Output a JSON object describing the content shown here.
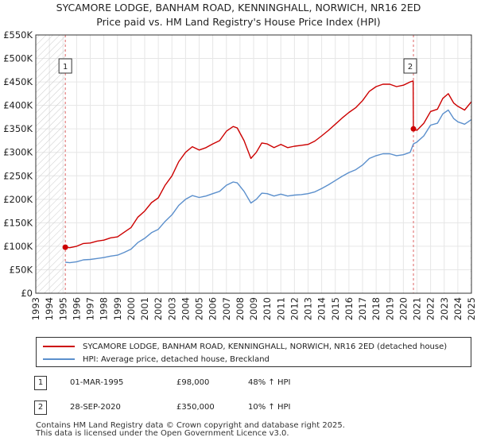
{
  "chart_data": {
    "type": "line",
    "title": "SYCAMORE LODGE, BANHAM ROAD, KENNINGHALL, NORWICH, NR16 2ED",
    "subtitle": "Price paid vs. HM Land Registry's House Price Index (HPI)",
    "ylim": [
      0,
      550000
    ],
    "xlim": [
      1993,
      2025
    ],
    "y_ticks": [
      0,
      50000,
      100000,
      150000,
      200000,
      250000,
      300000,
      350000,
      400000,
      450000,
      500000,
      550000
    ],
    "y_tick_labels": [
      "£0",
      "£50K",
      "£100K",
      "£150K",
      "£200K",
      "£250K",
      "£300K",
      "£350K",
      "£400K",
      "£450K",
      "£500K",
      "£550K"
    ],
    "x_ticks": [
      "1993",
      "1994",
      "1995",
      "1996",
      "1997",
      "1998",
      "1999",
      "2000",
      "2001",
      "2002",
      "2003",
      "2004",
      "2005",
      "2006",
      "2007",
      "2008",
      "2009",
      "2010",
      "2011",
      "2012",
      "2013",
      "2014",
      "2015",
      "2016",
      "2017",
      "2018",
      "2019",
      "2020",
      "2021",
      "2022",
      "2023",
      "2024",
      "2025"
    ],
    "series": [
      {
        "name": "SYCAMORE LODGE, BANHAM ROAD, KENNINGHALL, NORWICH, NR16 2ED (detached house)",
        "color": "#cc0000",
        "x": [
          1995.17,
          1995.5,
          1996.0,
          1996.5,
          1997.0,
          1997.5,
          1998.0,
          1998.5,
          1999.0,
          1999.5,
          2000.0,
          2000.5,
          2001.0,
          2001.5,
          2002.0,
          2002.5,
          2003.0,
          2003.5,
          2004.0,
          2004.5,
          2005.0,
          2005.5,
          2006.0,
          2006.5,
          2007.0,
          2007.5,
          2007.8,
          2008.3,
          2008.8,
          2009.2,
          2009.6,
          2010.0,
          2010.5,
          2011.0,
          2011.5,
          2012.0,
          2012.5,
          2013.0,
          2013.5,
          2014.0,
          2014.5,
          2015.0,
          2015.5,
          2016.0,
          2016.5,
          2017.0,
          2017.5,
          2018.0,
          2018.5,
          2019.0,
          2019.5,
          2020.0,
          2020.5,
          2020.72,
          2020.74,
          2021.0,
          2021.5,
          2022.0,
          2022.5,
          2022.9,
          2023.3,
          2023.7,
          2024.0,
          2024.5,
          2025.0
        ],
        "values": [
          98000,
          97000,
          100000,
          106000,
          107000,
          111000,
          113000,
          118000,
          120000,
          130000,
          140000,
          162000,
          175000,
          193000,
          203000,
          230000,
          250000,
          280000,
          300000,
          312000,
          305000,
          310000,
          318000,
          325000,
          345000,
          355000,
          352000,
          325000,
          287000,
          300000,
          320000,
          318000,
          310000,
          317000,
          310000,
          313000,
          315000,
          317000,
          324000,
          335000,
          347000,
          360000,
          373000,
          385000,
          395000,
          410000,
          430000,
          440000,
          445000,
          445000,
          440000,
          443000,
          450000,
          452000,
          350000,
          347000,
          362000,
          387000,
          392000,
          415000,
          425000,
          405000,
          398000,
          390000,
          408000
        ]
      },
      {
        "name": "HPI: Average price, detached house, Breckland",
        "color": "#5b8fcc",
        "x": [
          1995.17,
          1995.5,
          1996.0,
          1996.5,
          1997.0,
          1997.5,
          1998.0,
          1998.5,
          1999.0,
          1999.5,
          2000.0,
          2000.5,
          2001.0,
          2001.5,
          2002.0,
          2002.5,
          2003.0,
          2003.5,
          2004.0,
          2004.5,
          2005.0,
          2005.5,
          2006.0,
          2006.5,
          2007.0,
          2007.5,
          2007.8,
          2008.3,
          2008.8,
          2009.2,
          2009.6,
          2010.0,
          2010.5,
          2011.0,
          2011.5,
          2012.0,
          2012.5,
          2013.0,
          2013.5,
          2014.0,
          2014.5,
          2015.0,
          2015.5,
          2016.0,
          2016.5,
          2017.0,
          2017.5,
          2018.0,
          2018.5,
          2019.0,
          2019.5,
          2020.0,
          2020.5,
          2020.74,
          2021.0,
          2021.5,
          2022.0,
          2022.5,
          2022.9,
          2023.3,
          2023.7,
          2024.0,
          2024.5,
          2025.0
        ],
        "values": [
          66000,
          65000,
          67000,
          71000,
          72000,
          74000,
          76000,
          79000,
          81000,
          87000,
          94000,
          108000,
          117000,
          129000,
          136000,
          153000,
          167000,
          187000,
          200000,
          208000,
          204000,
          207000,
          212000,
          217000,
          230000,
          237000,
          235000,
          217000,
          192000,
          200000,
          213000,
          212000,
          207000,
          211000,
          207000,
          209000,
          210000,
          212000,
          216000,
          223000,
          231000,
          240000,
          249000,
          257000,
          263000,
          273000,
          287000,
          293000,
          297000,
          297000,
          293000,
          295000,
          300000,
          318000,
          322000,
          335000,
          358000,
          362000,
          382000,
          390000,
          372000,
          365000,
          360000,
          370000
        ]
      }
    ],
    "sales": [
      {
        "label": "1",
        "x": 1995.17,
        "value": 98000
      },
      {
        "label": "2",
        "x": 2020.74,
        "value": 350000
      }
    ]
  },
  "legend": {
    "series1": "SYCAMORE LODGE, BANHAM ROAD, KENNINGHALL, NORWICH, NR16 2ED (detached house)",
    "series2": "HPI: Average price, detached house, Breckland"
  },
  "transactions": [
    {
      "num": "1",
      "date": "01-MAR-1995",
      "price": "£98,000",
      "hpi": "48% ↑ HPI"
    },
    {
      "num": "2",
      "date": "28-SEP-2020",
      "price": "£350,000",
      "hpi": "10% ↑ HPI"
    }
  ],
  "footer": {
    "line1": "Contains HM Land Registry data © Crown copyright and database right 2025.",
    "line2": "This data is licensed under the Open Government Licence v3.0."
  },
  "colors": {
    "property": "#cc0000",
    "hpi": "#5b8fcc",
    "grid": "#e6e6e6",
    "vline": "#dd6666"
  }
}
